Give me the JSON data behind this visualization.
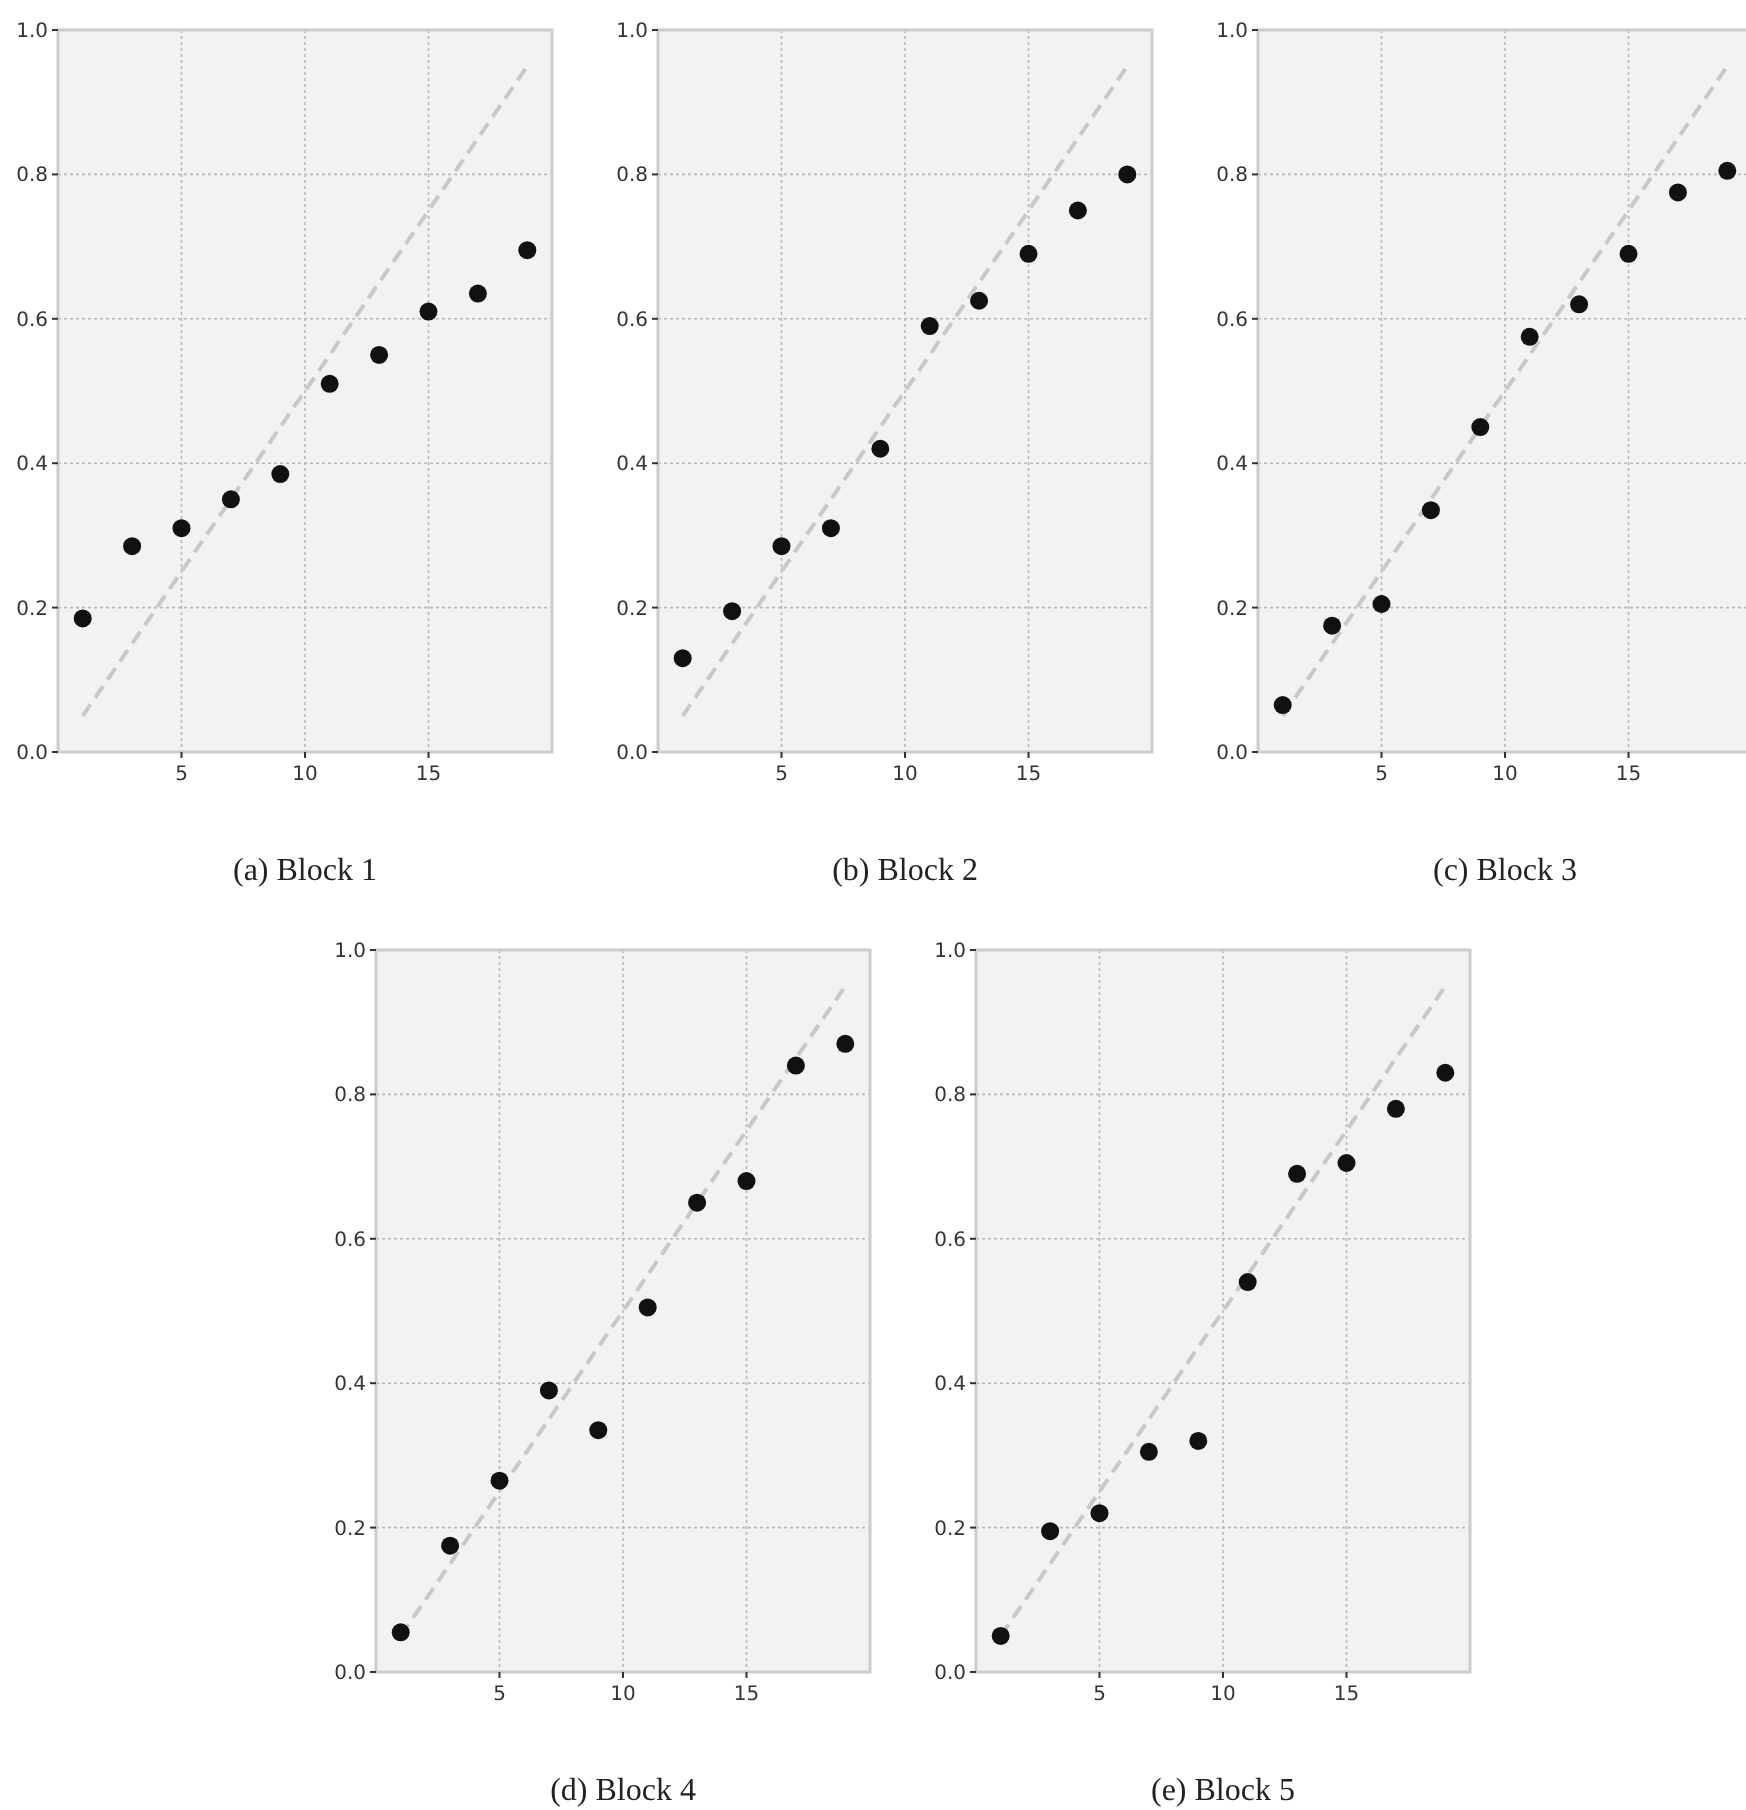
{
  "chart_data": [
    {
      "type": "scatter",
      "title": "(a) Block 1",
      "xlim": [
        0,
        20
      ],
      "ylim": [
        0,
        1
      ],
      "xticks": [
        5,
        10,
        15
      ],
      "yticks": [
        {
          "value": 0,
          "label": "0.0"
        },
        {
          "value": 0.2,
          "label": "0.2"
        },
        {
          "value": 0.4,
          "label": "0.4"
        },
        {
          "value": 0.6,
          "label": "0.6"
        },
        {
          "value": 0.8,
          "label": "0.8"
        },
        {
          "value": 1,
          "label": "1.0"
        }
      ],
      "grid": true,
      "series": [
        {
          "type": "line",
          "color": "#c8c8c8",
          "line_style": "dashed",
          "marker": "none",
          "x": [
            1,
            19
          ],
          "values": [
            0.05,
            0.95
          ]
        },
        {
          "color": "#111111",
          "marker": "circle",
          "x": [
            1,
            3,
            5,
            7,
            9,
            11,
            13,
            15,
            17,
            19
          ],
          "values": [
            0.185,
            0.285,
            0.31,
            0.35,
            0.385,
            0.51,
            0.55,
            0.61,
            0.635,
            0.695
          ]
        }
      ]
    },
    {
      "type": "scatter",
      "title": "(b) Block 2",
      "xlim": [
        0,
        20
      ],
      "ylim": [
        0,
        1
      ],
      "xticks": [
        5,
        10,
        15
      ],
      "yticks": [
        {
          "value": 0,
          "label": "0.0"
        },
        {
          "value": 0.2,
          "label": "0.2"
        },
        {
          "value": 0.4,
          "label": "0.4"
        },
        {
          "value": 0.6,
          "label": "0.6"
        },
        {
          "value": 0.8,
          "label": "0.8"
        },
        {
          "value": 1,
          "label": "1.0"
        }
      ],
      "grid": true,
      "series": [
        {
          "type": "line",
          "color": "#c8c8c8",
          "line_style": "dashed",
          "marker": "none",
          "x": [
            1,
            19
          ],
          "values": [
            0.05,
            0.95
          ]
        },
        {
          "color": "#111111",
          "marker": "circle",
          "x": [
            1,
            3,
            5,
            7,
            9,
            11,
            13,
            15,
            17,
            19
          ],
          "values": [
            0.13,
            0.195,
            0.285,
            0.31,
            0.42,
            0.59,
            0.625,
            0.69,
            0.75,
            0.8
          ]
        }
      ]
    },
    {
      "type": "scatter",
      "title": "(c) Block 3",
      "xlim": [
        0,
        20
      ],
      "ylim": [
        0,
        1
      ],
      "xticks": [
        5,
        10,
        15
      ],
      "yticks": [
        {
          "value": 0,
          "label": "0.0"
        },
        {
          "value": 0.2,
          "label": "0.2"
        },
        {
          "value": 0.4,
          "label": "0.4"
        },
        {
          "value": 0.6,
          "label": "0.6"
        },
        {
          "value": 0.8,
          "label": "0.8"
        },
        {
          "value": 1,
          "label": "1.0"
        }
      ],
      "grid": true,
      "series": [
        {
          "type": "line",
          "color": "#c8c8c8",
          "line_style": "dashed",
          "marker": "none",
          "x": [
            1,
            19
          ],
          "values": [
            0.05,
            0.95
          ]
        },
        {
          "color": "#111111",
          "marker": "circle",
          "x": [
            1,
            3,
            5,
            7,
            9,
            11,
            13,
            15,
            17,
            19
          ],
          "values": [
            0.065,
            0.175,
            0.205,
            0.335,
            0.45,
            0.575,
            0.62,
            0.69,
            0.775,
            0.805
          ]
        }
      ]
    },
    {
      "type": "scatter",
      "title": "(d) Block 4",
      "xlim": [
        0,
        20
      ],
      "ylim": [
        0,
        1
      ],
      "xticks": [
        5,
        10,
        15
      ],
      "yticks": [
        {
          "value": 0,
          "label": "0.0"
        },
        {
          "value": 0.2,
          "label": "0.2"
        },
        {
          "value": 0.4,
          "label": "0.4"
        },
        {
          "value": 0.6,
          "label": "0.6"
        },
        {
          "value": 0.8,
          "label": "0.8"
        },
        {
          "value": 1,
          "label": "1.0"
        }
      ],
      "grid": true,
      "series": [
        {
          "type": "line",
          "color": "#c8c8c8",
          "line_style": "dashed",
          "marker": "none",
          "x": [
            1,
            19
          ],
          "values": [
            0.05,
            0.95
          ]
        },
        {
          "color": "#111111",
          "marker": "circle",
          "x": [
            1,
            3,
            5,
            7,
            9,
            11,
            13,
            15,
            17,
            19
          ],
          "values": [
            0.055,
            0.175,
            0.265,
            0.39,
            0.335,
            0.505,
            0.65,
            0.68,
            0.84,
            0.87
          ]
        }
      ]
    },
    {
      "type": "scatter",
      "title": "(e) Block 5",
      "xlim": [
        0,
        20
      ],
      "ylim": [
        0,
        1
      ],
      "xticks": [
        5,
        10,
        15
      ],
      "yticks": [
        {
          "value": 0,
          "label": "0.0"
        },
        {
          "value": 0.2,
          "label": "0.2"
        },
        {
          "value": 0.4,
          "label": "0.4"
        },
        {
          "value": 0.6,
          "label": "0.6"
        },
        {
          "value": 0.8,
          "label": "0.8"
        },
        {
          "value": 1,
          "label": "1.0"
        }
      ],
      "grid": true,
      "series": [
        {
          "type": "line",
          "color": "#c8c8c8",
          "line_style": "dashed",
          "marker": "none",
          "x": [
            1,
            19
          ],
          "values": [
            0.05,
            0.95
          ]
        },
        {
          "color": "#111111",
          "marker": "circle",
          "x": [
            1,
            3,
            5,
            7,
            9,
            11,
            13,
            15,
            17,
            19
          ],
          "values": [
            0.05,
            0.195,
            0.22,
            0.305,
            0.32,
            0.54,
            0.69,
            0.705,
            0.78,
            0.83
          ]
        }
      ]
    }
  ]
}
